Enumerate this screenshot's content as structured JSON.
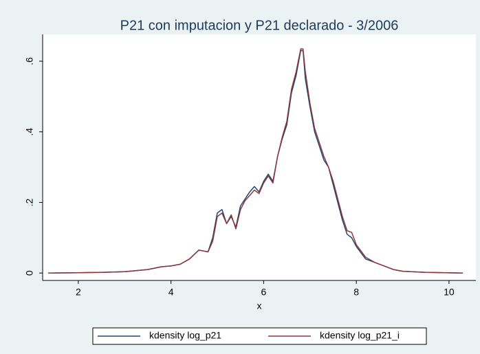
{
  "chart_data": {
    "type": "line",
    "title": "P21 con imputacion y P21 declarado - 3/2006",
    "x_label": "x",
    "x": [
      1.35,
      2,
      2.5,
      3,
      3.5,
      3.8,
      4,
      4.2,
      4.4,
      4.6,
      4.8,
      4.9,
      5.0,
      5.1,
      5.2,
      5.3,
      5.4,
      5.5,
      5.6,
      5.7,
      5.8,
      5.9,
      6.0,
      6.1,
      6.2,
      6.3,
      6.4,
      6.5,
      6.6,
      6.7,
      6.8,
      6.85,
      6.9,
      7.0,
      7.1,
      7.2,
      7.3,
      7.4,
      7.5,
      7.6,
      7.7,
      7.8,
      7.9,
      8.0,
      8.2,
      8.4,
      8.6,
      8.8,
      9.0,
      9.5,
      10.3
    ],
    "series": [
      {
        "name": "kdensity log_p21",
        "color": "#1a476f",
        "values": [
          0,
          0.001,
          0.002,
          0.004,
          0.01,
          0.018,
          0.02,
          0.025,
          0.04,
          0.065,
          0.06,
          0.1,
          0.17,
          0.18,
          0.14,
          0.16,
          0.13,
          0.19,
          0.21,
          0.23,
          0.245,
          0.23,
          0.26,
          0.28,
          0.26,
          0.33,
          0.38,
          0.42,
          0.51,
          0.56,
          0.63,
          0.63,
          0.55,
          0.47,
          0.4,
          0.36,
          0.32,
          0.3,
          0.25,
          0.2,
          0.15,
          0.11,
          0.1,
          0.075,
          0.04,
          0.03,
          0.02,
          0.01,
          0.005,
          0.002,
          0
        ]
      },
      {
        "name": "kdensity log_p21_i",
        "color": "#90353b",
        "values": [
          0,
          0.001,
          0.002,
          0.004,
          0.01,
          0.018,
          0.02,
          0.025,
          0.04,
          0.065,
          0.06,
          0.09,
          0.16,
          0.17,
          0.14,
          0.165,
          0.125,
          0.18,
          0.205,
          0.22,
          0.235,
          0.225,
          0.255,
          0.275,
          0.255,
          0.33,
          0.385,
          0.43,
          0.52,
          0.57,
          0.635,
          0.635,
          0.57,
          0.48,
          0.41,
          0.37,
          0.33,
          0.3,
          0.26,
          0.21,
          0.16,
          0.12,
          0.115,
          0.08,
          0.045,
          0.03,
          0.02,
          0.01,
          0.005,
          0.002,
          0
        ]
      }
    ],
    "xlim": [
      1.23,
      10.58
    ],
    "xticks": [
      2,
      4,
      6,
      8,
      10
    ],
    "ylim": [
      -0.021,
      0.676
    ],
    "yticks": [
      0,
      {
        "value": 0.2,
        "label": ".2"
      },
      {
        "value": 0.4,
        "label": ".4"
      },
      {
        "value": 0.6,
        "label": ".6"
      }
    ]
  }
}
